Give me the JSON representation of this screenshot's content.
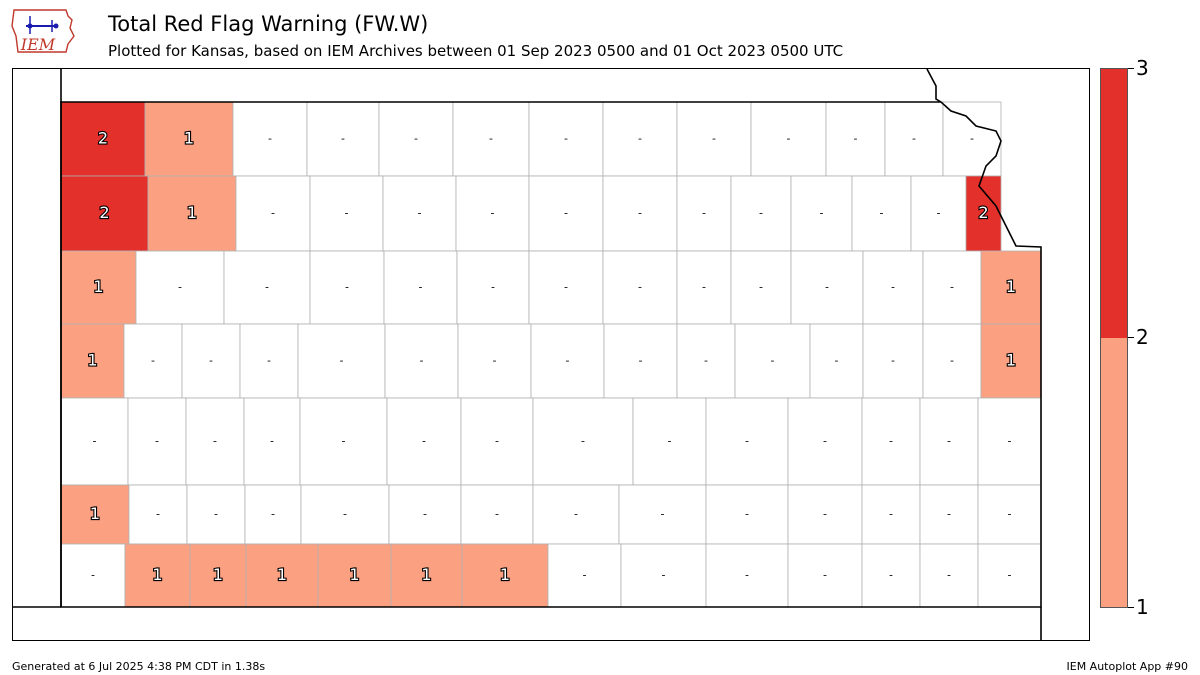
{
  "header": {
    "logo_text": "IEM",
    "title": "Total Red Flag Warning (FW.W)",
    "subtitle": "Plotted for Kansas, based on IEM Archives  between 01 Sep 2023 0500 and 01 Oct 2023 0500 UTC"
  },
  "colors": {
    "level_1": "#fca082",
    "level_2": "#e3302a",
    "county_border": "#b0b0b0",
    "state_border": "#000000"
  },
  "colorbar": {
    "ticks": [
      "3",
      "2",
      "1"
    ]
  },
  "map": {
    "counties": [
      {
        "value": "2",
        "level": 2
      },
      {
        "value": "1",
        "level": 1
      },
      {
        "value": "-"
      },
      {
        "value": "-"
      },
      {
        "value": "-"
      },
      {
        "value": "-"
      },
      {
        "value": "-"
      },
      {
        "value": "-"
      },
      {
        "value": "-"
      },
      {
        "value": "-"
      },
      {
        "value": "-"
      },
      {
        "value": "-"
      },
      {
        "value": "-"
      },
      {
        "value": "2",
        "level": 2
      },
      {
        "value": "1",
        "level": 1
      },
      {
        "value": "-"
      },
      {
        "value": "-"
      },
      {
        "value": "-"
      },
      {
        "value": "-"
      },
      {
        "value": "-"
      },
      {
        "value": "-"
      },
      {
        "value": "-"
      },
      {
        "value": "-"
      },
      {
        "value": "-"
      },
      {
        "value": "-"
      },
      {
        "value": "-"
      },
      {
        "value": "2",
        "level": 2
      },
      {
        "value": "1",
        "level": 1
      },
      {
        "value": "-"
      },
      {
        "value": "-"
      },
      {
        "value": "-"
      },
      {
        "value": "-"
      },
      {
        "value": "-"
      },
      {
        "value": "-"
      },
      {
        "value": "-"
      },
      {
        "value": "-"
      },
      {
        "value": "-"
      },
      {
        "value": "-"
      },
      {
        "value": "-"
      },
      {
        "value": "-"
      },
      {
        "value": "1",
        "level": 1
      },
      {
        "value": "1",
        "level": 1
      },
      {
        "value": "-"
      },
      {
        "value": "-"
      },
      {
        "value": "-"
      },
      {
        "value": "-"
      },
      {
        "value": "-"
      },
      {
        "value": "-"
      },
      {
        "value": "-"
      },
      {
        "value": "-"
      },
      {
        "value": "-"
      },
      {
        "value": "-"
      },
      {
        "value": "-"
      },
      {
        "value": "-"
      },
      {
        "value": "-"
      },
      {
        "value": "1",
        "level": 1
      },
      {
        "value": "-"
      },
      {
        "value": "-"
      },
      {
        "value": "-"
      },
      {
        "value": "-"
      },
      {
        "value": "-"
      },
      {
        "value": "-"
      },
      {
        "value": "-"
      },
      {
        "value": "-"
      },
      {
        "value": "-"
      },
      {
        "value": "-"
      },
      {
        "value": "-"
      },
      {
        "value": "-"
      },
      {
        "value": "-"
      },
      {
        "value": "-"
      },
      {
        "value": "1",
        "level": 1
      },
      {
        "value": "-"
      },
      {
        "value": "-"
      },
      {
        "value": "-"
      },
      {
        "value": "-"
      },
      {
        "value": "-"
      },
      {
        "value": "-"
      },
      {
        "value": "-"
      },
      {
        "value": "-"
      },
      {
        "value": "-"
      },
      {
        "value": "-"
      },
      {
        "value": "-"
      },
      {
        "value": "-"
      },
      {
        "value": "-"
      },
      {
        "value": "-"
      },
      {
        "value": "1",
        "level": 1
      },
      {
        "value": "1",
        "level": 1
      },
      {
        "value": "1",
        "level": 1
      },
      {
        "value": "1",
        "level": 1
      },
      {
        "value": "1",
        "level": 1
      },
      {
        "value": "1",
        "level": 1
      },
      {
        "value": "-"
      },
      {
        "value": "-"
      },
      {
        "value": "-"
      },
      {
        "value": "-"
      },
      {
        "value": "-"
      },
      {
        "value": "-"
      },
      {
        "value": "-"
      },
      {
        "value": "-"
      },
      {
        "value": "-"
      }
    ]
  },
  "footer": {
    "generated": "Generated at 6 Jul 2025 4:38 PM CDT in 1.38s",
    "app": "IEM Autoplot App #90"
  }
}
